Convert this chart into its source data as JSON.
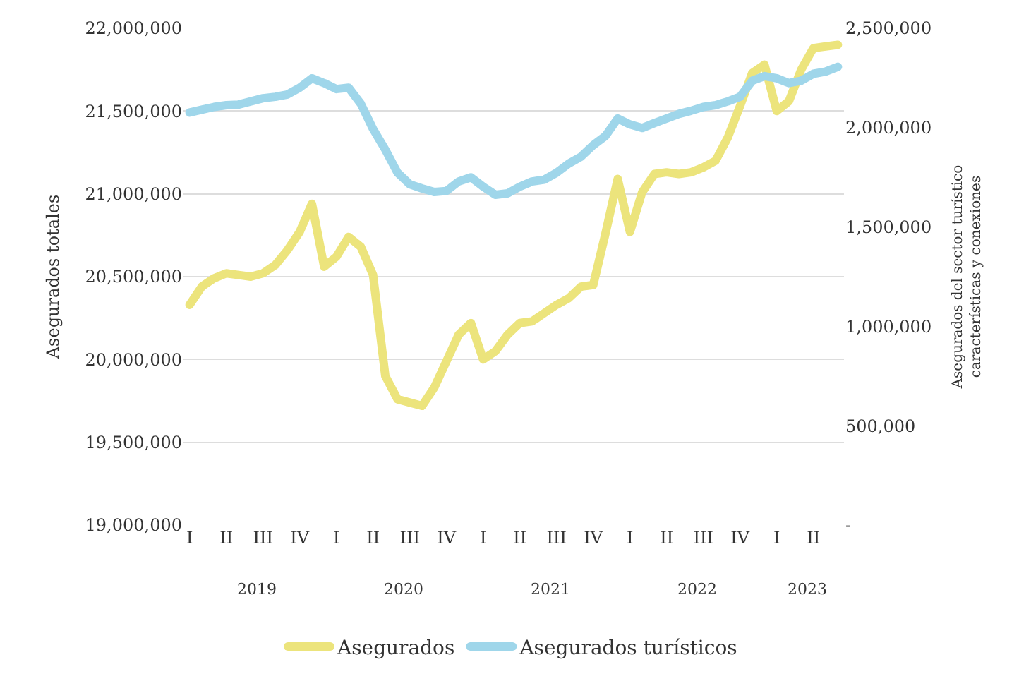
{
  "chart_data": {
    "type": "line",
    "ylabel": "Asegurados totales",
    "y2label": "Asegurados del sector turístico\ncaracterísticas y conexiones",
    "categories": [
      "I",
      null,
      null,
      "II",
      null,
      null,
      "III",
      null,
      null,
      "IV",
      null,
      null,
      "I",
      null,
      null,
      "II",
      null,
      null,
      "III",
      null,
      null,
      "IV",
      null,
      null,
      "I",
      null,
      null,
      "II",
      null,
      null,
      "III",
      null,
      null,
      "IV",
      null,
      null,
      "I",
      null,
      null,
      "II",
      null,
      null,
      "III",
      null,
      null,
      "IV",
      null,
      null,
      "I",
      null,
      null,
      "II",
      null,
      null
    ],
    "series": [
      {
        "name": "Asegurados",
        "color": "#ece47c",
        "values": [
          20330000,
          20440000,
          20490000,
          20520000,
          20510000,
          20500000,
          20520000,
          20570000,
          20660000,
          20770000,
          20940000,
          20560000,
          20620000,
          20740000,
          20680000,
          20510000,
          19900000,
          19760000,
          19740000,
          19720000,
          19830000,
          19990000,
          20150000,
          20220000,
          20000000,
          20050000,
          20150000,
          20220000,
          20230000,
          20280000,
          20330000,
          20370000,
          20440000,
          20450000,
          20760000,
          21090000,
          20770000,
          21010000,
          21120000,
          21130000,
          21120000,
          21130000,
          21160000,
          21200000,
          21340000,
          21530000,
          21730000,
          21780000,
          21500000,
          21560000,
          21750000,
          21880000,
          21890000,
          21900000
        ]
      },
      {
        "name": "Asegurados turísticos",
        "color": "#9fd6ea",
        "axis": "y2",
        "values": [
          2076000,
          2090000,
          2104000,
          2113000,
          2116000,
          2132000,
          2148000,
          2155000,
          2167000,
          2201000,
          2248000,
          2224000,
          2194000,
          2201000,
          2120000,
          1993000,
          1889000,
          1773000,
          1715000,
          1694000,
          1676000,
          1681000,
          1729000,
          1750000,
          1703000,
          1662000,
          1669000,
          1703000,
          1729000,
          1738000,
          1773000,
          1819000,
          1854000,
          1912000,
          1958000,
          2046000,
          2016000,
          1998000,
          2023000,
          2046000,
          2069000,
          2085000,
          2104000,
          2113000,
          2132000,
          2155000,
          2236000,
          2259000,
          2248000,
          2224000,
          2236000,
          2271000,
          2282000,
          2306000
        ]
      }
    ],
    "ylim": [
      19000000,
      22000000
    ],
    "yticks": [
      {
        "value": 19000000,
        "label": "19,000,000"
      },
      {
        "value": 19500000,
        "label": "19,500,000"
      },
      {
        "value": 20000000,
        "label": "20,000,000"
      },
      {
        "value": 20500000,
        "label": "20,500,000"
      },
      {
        "value": 21000000,
        "label": "21,000,000"
      },
      {
        "value": 21500000,
        "label": "21,500,000"
      },
      {
        "value": 22000000,
        "label": "22,000,000"
      }
    ],
    "y2lim": [
      0,
      2500000
    ],
    "y2ticks": [
      {
        "value": 0,
        "label": "-"
      },
      {
        "value": 500000,
        "label": "500,000"
      },
      {
        "value": 1000000,
        "label": "1,000,000"
      },
      {
        "value": 1500000,
        "label": "1,500,000"
      },
      {
        "value": 2000000,
        "label": "2,000,000"
      },
      {
        "value": 2500000,
        "label": "2,500,000"
      }
    ],
    "annotations": [
      "2019",
      "2020",
      "2021",
      "2022",
      "2023"
    ],
    "grid": "y",
    "legend": "bottom",
    "marker": "none",
    "line_style": "solid"
  }
}
